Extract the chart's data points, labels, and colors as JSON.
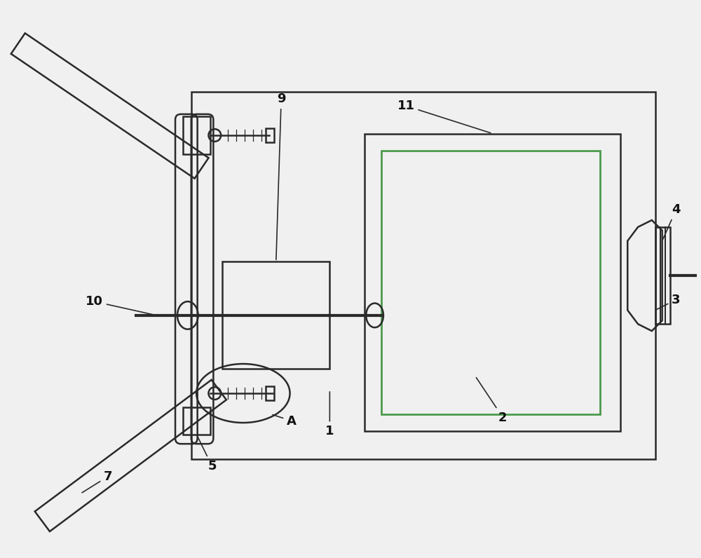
{
  "bg_color": "#f0f0f0",
  "line_color": "#2a2a2a",
  "green_color": "#4a9a4a",
  "lw": 1.8,
  "tlw": 3.0
}
